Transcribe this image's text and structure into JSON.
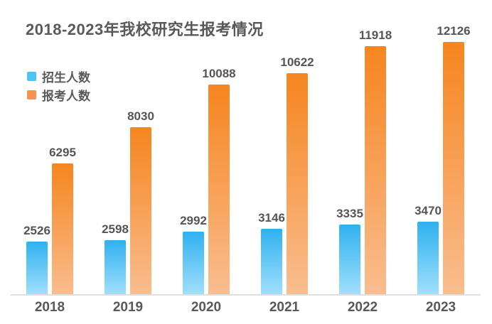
{
  "title": "2018-2023年我校研究生报考情况",
  "colors": {
    "title_text": "#595959",
    "value_label_text": "#555555",
    "axis_label_text": "#595959",
    "axis_line": "#dedede",
    "background": "#ffffff"
  },
  "legend": {
    "items": [
      {
        "label": "招生人数",
        "swatch_color": "#4fc3f3"
      },
      {
        "label": "报考人数",
        "swatch_color": "#f79250"
      }
    ]
  },
  "chart_data": {
    "type": "bar",
    "title": "2018-2023年我校研究生报考情况",
    "categories": [
      "2018",
      "2019",
      "2020",
      "2021",
      "2022",
      "2023"
    ],
    "series": [
      {
        "name": "招生人数",
        "color_top": "#2fb1ef",
        "color_bottom": "#a0dffb",
        "values": [
          2526,
          2598,
          2992,
          3146,
          3335,
          3470
        ]
      },
      {
        "name": "报考人数",
        "color_top": "#f6851f",
        "color_bottom": "#f9bd8f",
        "values": [
          6295,
          8030,
          10088,
          10622,
          11918,
          12126
        ]
      }
    ],
    "xlabel": "",
    "ylabel": "",
    "ylim": [
      0,
      12126
    ],
    "grid": false,
    "legend_position": "upper-left",
    "value_labels": true
  }
}
